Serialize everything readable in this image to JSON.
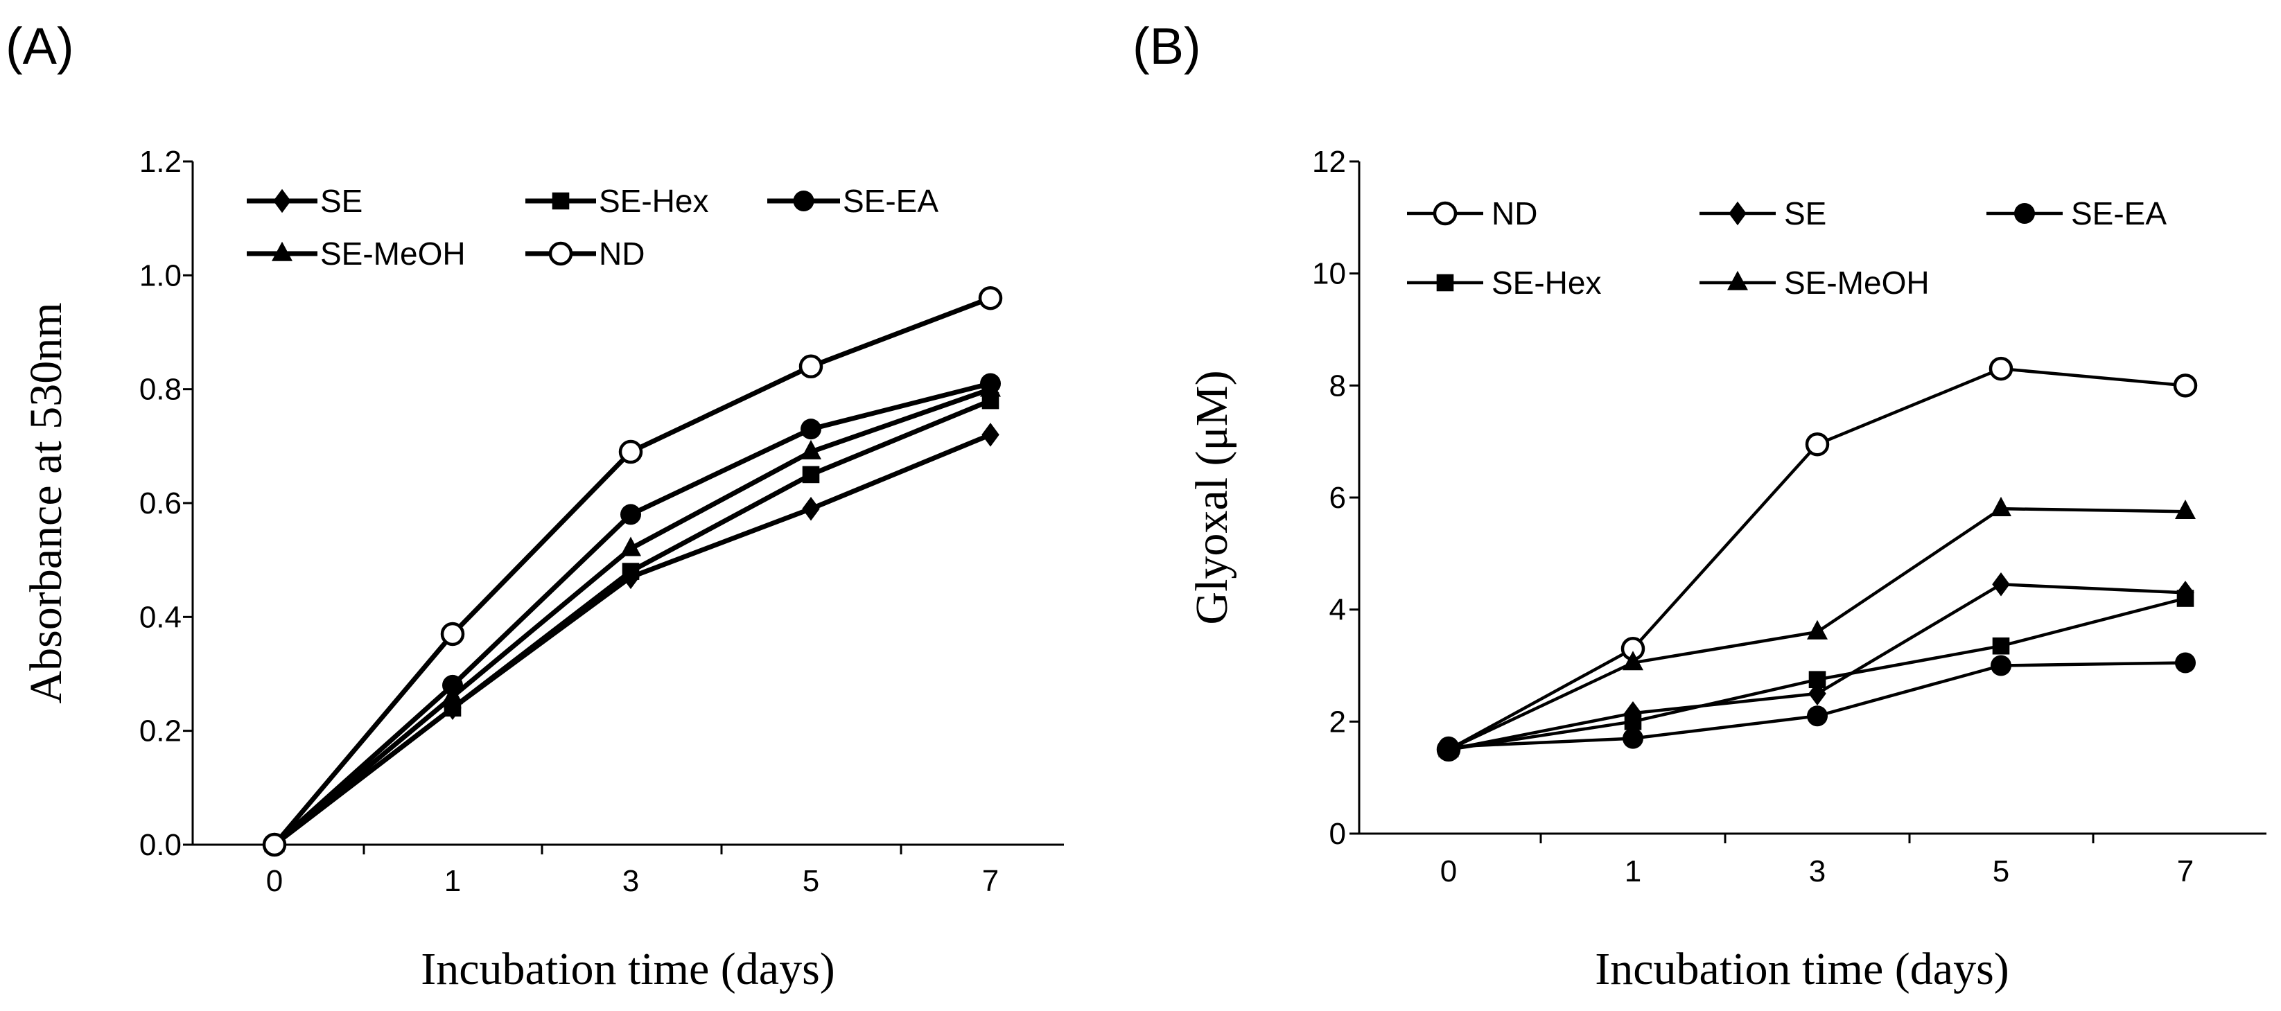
{
  "figure": {
    "panels": [
      "(A)",
      "(B)"
    ]
  },
  "chart_data": [
    {
      "type": "line",
      "panel_label": "(A)",
      "title": "",
      "xlabel": "Incubation time (days)",
      "ylabel": "Absorbance at 530nm",
      "categories": [
        "0",
        "1",
        "3",
        "5",
        "7"
      ],
      "ylim": [
        0,
        1.2
      ],
      "yticks": [
        "0.0",
        "0.2",
        "0.4",
        "0.6",
        "0.8",
        "1.0",
        "1.2"
      ],
      "grid": false,
      "legend": "top-left",
      "series": [
        {
          "name": "SE",
          "marker": "diamond",
          "values": [
            0.0,
            0.24,
            0.47,
            0.59,
            0.72
          ]
        },
        {
          "name": "SE-Hex",
          "marker": "square",
          "values": [
            0.0,
            0.24,
            0.48,
            0.65,
            0.78
          ]
        },
        {
          "name": "SE-EA",
          "marker": "circle",
          "values": [
            0.0,
            0.28,
            0.58,
            0.73,
            0.81
          ]
        },
        {
          "name": "SE-MeOH",
          "marker": "triangle",
          "values": [
            0.0,
            0.26,
            0.52,
            0.69,
            0.8
          ]
        },
        {
          "name": "ND",
          "marker": "open-circle",
          "values": [
            0.0,
            0.37,
            0.69,
            0.84,
            0.96
          ]
        }
      ]
    },
    {
      "type": "line",
      "panel_label": "(B)",
      "title": "",
      "xlabel": "Incubation time (days)",
      "ylabel": "Glyoxal (μM)",
      "categories": [
        "0",
        "1",
        "3",
        "5",
        "7"
      ],
      "ylim": [
        0,
        12
      ],
      "yticks": [
        "0",
        "2",
        "4",
        "6",
        "8",
        "10",
        "12"
      ],
      "grid": false,
      "legend": "top-left",
      "series": [
        {
          "name": "ND",
          "marker": "open-circle",
          "values": [
            1.5,
            3.3,
            6.95,
            8.3,
            8.0
          ]
        },
        {
          "name": "SE",
          "marker": "diamond",
          "values": [
            1.5,
            2.15,
            2.5,
            4.45,
            4.3
          ]
        },
        {
          "name": "SE-EA",
          "marker": "circle",
          "values": [
            1.55,
            1.7,
            2.1,
            3.0,
            3.05
          ]
        },
        {
          "name": "SE-Hex",
          "marker": "square",
          "values": [
            1.5,
            2.0,
            2.75,
            3.35,
            4.2
          ]
        },
        {
          "name": "SE-MeOH",
          "marker": "triangle",
          "values": [
            1.5,
            3.05,
            3.6,
            5.8,
            5.75
          ]
        }
      ]
    }
  ]
}
